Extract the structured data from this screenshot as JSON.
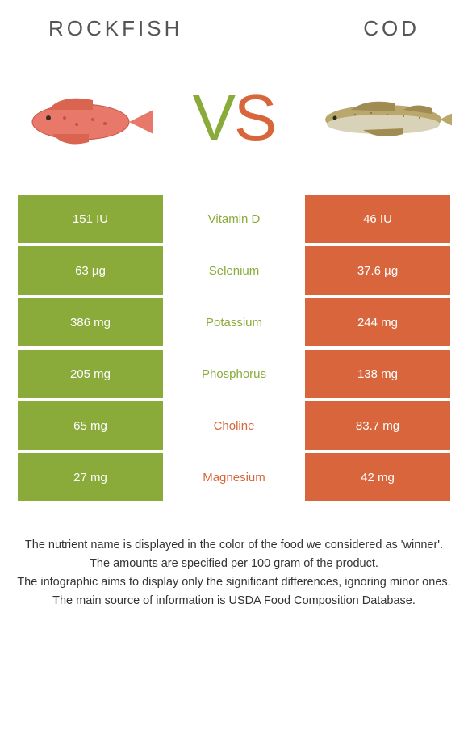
{
  "header": {
    "left_title": "Rockfish",
    "right_title": "Cod"
  },
  "vs": {
    "v": "V",
    "s": "S"
  },
  "colors": {
    "green": "#8aab3a",
    "orange": "#d9653c",
    "background": "#ffffff"
  },
  "table": {
    "rows": [
      {
        "left": "151 IU",
        "nutrient": "Vitamin D",
        "right": "46 IU",
        "winner": "left"
      },
      {
        "left": "63 µg",
        "nutrient": "Selenium",
        "right": "37.6 µg",
        "winner": "left"
      },
      {
        "left": "386 mg",
        "nutrient": "Potassium",
        "right": "244 mg",
        "winner": "left"
      },
      {
        "left": "205 mg",
        "nutrient": "Phosphorus",
        "right": "138 mg",
        "winner": "left"
      },
      {
        "left": "65 mg",
        "nutrient": "Choline",
        "right": "83.7 mg",
        "winner": "right"
      },
      {
        "left": "27 mg",
        "nutrient": "Magnesium",
        "right": "42 mg",
        "winner": "right"
      }
    ]
  },
  "footnotes": {
    "line1": "The nutrient name is displayed in the color of the food we considered as 'winner'.",
    "line2": "The amounts are specified per 100 gram of the product.",
    "line3": "The infographic aims to display only the significant differences, ignoring minor ones.",
    "line4": "The main source of information is USDA Food Composition Database."
  }
}
